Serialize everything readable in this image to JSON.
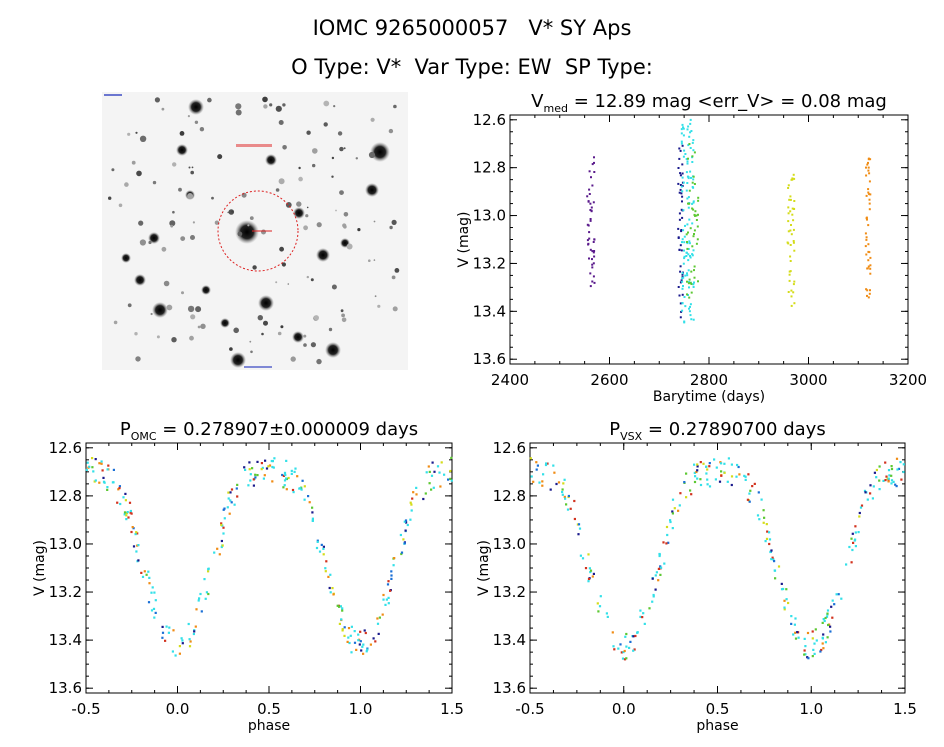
{
  "header": {
    "title": "IOMC 9265000057   V* SY Aps",
    "subtitle": "O Type: V*  Var Type: EW  SP Type:"
  },
  "colors": {
    "text": "#000000",
    "circle": "#dd2020",
    "purple": "#5a1a8c",
    "navy": "#1a1a8c",
    "blue": "#1a6fd6",
    "cyan": "#33e0e8",
    "green": "#5cc832",
    "yellow": "#d4dc1a",
    "orange": "#f08c14",
    "red": "#d2321e"
  },
  "image_panel": {
    "type": "star-field",
    "description_labels": []
  },
  "chart_data": [
    {
      "type": "scatter",
      "title": "V_med = 12.89 mag <err_V> = 0.08 mag",
      "title_parts": {
        "v": "V",
        "sub": "med",
        "rest": " = 12.89 mag <err_V> = 0.08 mag"
      },
      "xlabel": "Barytime (days)",
      "ylabel": "V (mag)",
      "xlim": [
        2400,
        3200
      ],
      "ylim": [
        13.62,
        12.58
      ],
      "xticks": [
        2400,
        2600,
        2800,
        3000,
        3200
      ],
      "yticks": [
        12.6,
        12.8,
        13.0,
        13.2,
        13.4,
        13.6
      ],
      "groups": [
        {
          "name": "g1",
          "color": "purple",
          "x_range": [
            2555,
            2570
          ],
          "y_range": [
            12.75,
            13.3
          ]
        },
        {
          "name": "g2",
          "color": "navy",
          "x_range": [
            2738,
            2748
          ],
          "y_range": [
            12.7,
            13.45
          ]
        },
        {
          "name": "g3",
          "color": "cyan",
          "x_range": [
            2745,
            2770
          ],
          "y_range": [
            12.6,
            13.47
          ]
        },
        {
          "name": "g4",
          "color": "green",
          "x_range": [
            2755,
            2780
          ],
          "y_range": [
            12.7,
            13.38
          ]
        },
        {
          "name": "g5",
          "color": "yellow",
          "x_range": [
            2958,
            2972
          ],
          "y_range": [
            12.8,
            13.4
          ]
        },
        {
          "name": "g6",
          "color": "orange",
          "x_range": [
            3115,
            3125
          ],
          "y_range": [
            12.76,
            13.36
          ]
        }
      ]
    },
    {
      "type": "scatter",
      "title": "P_OMC = 0.278907±0.000009 days",
      "title_parts": {
        "v": "P",
        "sub": "OMC",
        "rest": " = 0.278907±0.000009 days"
      },
      "xlabel": "phase",
      "ylabel": "V (mag)",
      "xlim": [
        -0.5,
        1.5
      ],
      "ylim": [
        13.62,
        12.58
      ],
      "xticks": [
        -0.5,
        0.0,
        0.5,
        1.0,
        1.5
      ],
      "yticks": [
        12.6,
        12.8,
        13.0,
        13.2,
        13.4,
        13.6
      ],
      "light_curve": {
        "max_mag": 12.7,
        "min_mag": 13.42,
        "secondary_min_mag": 13.3
      }
    },
    {
      "type": "scatter",
      "title": "P_VSX = 0.27890700 days",
      "title_parts": {
        "v": "P",
        "sub": "VSX",
        "rest": " = 0.27890700 days"
      },
      "xlabel": "phase",
      "ylabel": "V (mag)",
      "xlim": [
        -0.5,
        1.5
      ],
      "ylim": [
        13.62,
        12.58
      ],
      "xticks": [
        -0.5,
        0.0,
        0.5,
        1.0,
        1.5
      ],
      "yticks": [
        12.6,
        12.8,
        13.0,
        13.2,
        13.4,
        13.6
      ],
      "light_curve": {
        "max_mag": 12.7,
        "min_mag": 13.42,
        "secondary_min_mag": 13.3
      }
    }
  ]
}
